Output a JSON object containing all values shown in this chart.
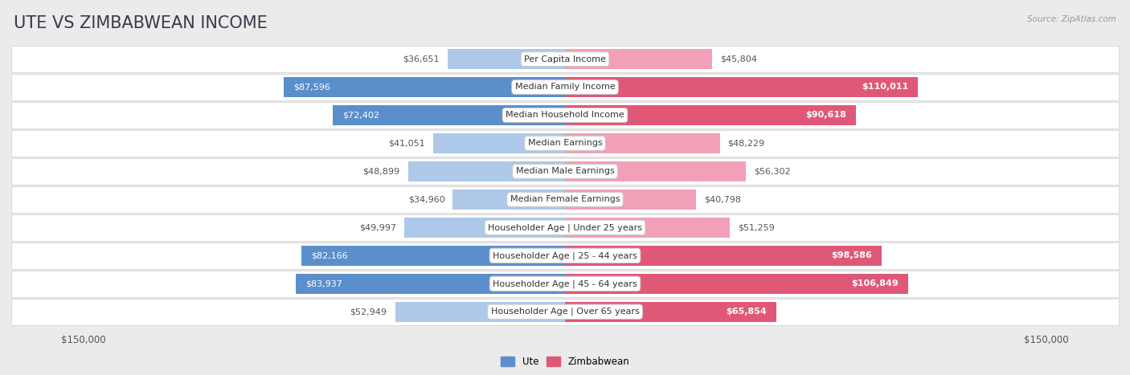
{
  "title": "UTE VS ZIMBABWEAN INCOME",
  "source": "Source: ZipAtlas.com",
  "categories": [
    "Per Capita Income",
    "Median Family Income",
    "Median Household Income",
    "Median Earnings",
    "Median Male Earnings",
    "Median Female Earnings",
    "Householder Age | Under 25 years",
    "Householder Age | 25 - 44 years",
    "Householder Age | 45 - 64 years",
    "Householder Age | Over 65 years"
  ],
  "ute_values": [
    36651,
    87596,
    72402,
    41051,
    48899,
    34960,
    49997,
    82166,
    83937,
    52949
  ],
  "zimbabwean_values": [
    45804,
    110011,
    90618,
    48229,
    56302,
    40798,
    51259,
    98586,
    106849,
    65854
  ],
  "ute_labels": [
    "$36,651",
    "$87,596",
    "$72,402",
    "$41,051",
    "$48,899",
    "$34,960",
    "$49,997",
    "$82,166",
    "$83,937",
    "$52,949"
  ],
  "zimbabwean_labels": [
    "$45,804",
    "$110,011",
    "$90,618",
    "$48,229",
    "$56,302",
    "$40,798",
    "$51,259",
    "$98,586",
    "$106,849",
    "$65,854"
  ],
  "ute_color_light": "#adc8e8",
  "ute_color_dark": "#5b8fcc",
  "zimbabwean_color_light": "#f2a0b8",
  "zimbabwean_color_dark": "#e05878",
  "max_value": 150000,
  "background_color": "#ebebeb",
  "title_fontsize": 15,
  "label_fontsize": 8,
  "category_fontsize": 8,
  "axis_label_fontsize": 8.5,
  "ute_threshold": 60000,
  "zim_threshold": 60000
}
